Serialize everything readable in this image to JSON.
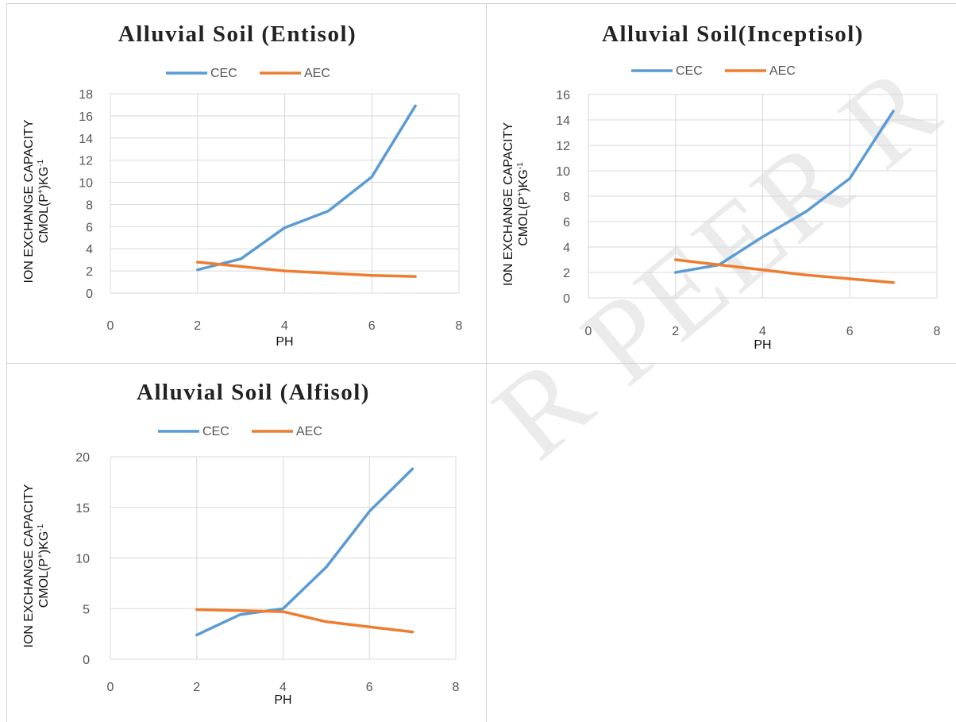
{
  "watermark": "R PEER R",
  "colors": {
    "cec": "#5B9BD5",
    "aec": "#ED7D31",
    "grid": "#d9d9d9",
    "border": "#d4d4d4"
  },
  "chart_data": [
    {
      "type": "line",
      "title": "Alluvial Soil (Entisol)",
      "xlabel": "PH",
      "ylabel_line1": "ION EXCHANGE CAPACITY",
      "ylabel_line2_prefix": "CMOL(P",
      "ylabel_sup1": "+",
      "ylabel_line2_mid": ")KG",
      "ylabel_sup2": "-1",
      "xlim": [
        0,
        8
      ],
      "xticks": [
        0,
        2,
        4,
        6,
        8
      ],
      "ylim": [
        0,
        18
      ],
      "yticks": [
        0,
        2,
        4,
        6,
        8,
        10,
        12,
        14,
        16,
        18
      ],
      "grid": true,
      "legend": "top",
      "series": [
        {
          "name": "CEC",
          "color": "#5B9BD5",
          "x": [
            2,
            3,
            4,
            5,
            6,
            7
          ],
          "y": [
            2.1,
            3.1,
            5.9,
            7.4,
            10.5,
            16.9
          ]
        },
        {
          "name": "AEC",
          "color": "#ED7D31",
          "x": [
            2,
            3,
            4,
            5,
            6,
            7
          ],
          "y": [
            2.8,
            2.4,
            2.0,
            1.8,
            1.6,
            1.5
          ]
        }
      ]
    },
    {
      "type": "line",
      "title": "Alluvial Soil(Inceptisol)",
      "xlabel": "PH",
      "ylabel_line1": "ION EXCHANGE CAPACITY",
      "ylabel_line2_prefix": "CMOL(P",
      "ylabel_sup1": "+",
      "ylabel_line2_mid": ")KG",
      "ylabel_sup2": "-1",
      "xlim": [
        0,
        8
      ],
      "xticks": [
        0,
        2,
        4,
        6,
        8
      ],
      "ylim": [
        0,
        16
      ],
      "yticks": [
        0,
        2,
        4,
        6,
        8,
        10,
        12,
        14,
        16
      ],
      "grid": true,
      "legend": "top",
      "series": [
        {
          "name": "CEC",
          "color": "#5B9BD5",
          "x": [
            2,
            3,
            4,
            5,
            6,
            7
          ],
          "y": [
            2.0,
            2.6,
            4.8,
            6.8,
            9.4,
            14.7
          ]
        },
        {
          "name": "AEC",
          "color": "#ED7D31",
          "x": [
            2,
            3,
            4,
            5,
            6,
            7
          ],
          "y": [
            3.0,
            2.6,
            2.2,
            1.8,
            1.5,
            1.2
          ]
        }
      ]
    },
    {
      "type": "line",
      "title": "Alluvial Soil (Alfisol)",
      "xlabel": "PH",
      "ylabel_line1": "ION EXCHANGE CAPACITY",
      "ylabel_line2_prefix": "CMOL(P",
      "ylabel_sup1": "+",
      "ylabel_line2_mid": ")KG",
      "ylabel_sup2": "-1",
      "xlim": [
        0,
        8
      ],
      "xticks": [
        0,
        2,
        4,
        6,
        8
      ],
      "ylim": [
        0,
        20
      ],
      "yticks": [
        0,
        5,
        10,
        15,
        20
      ],
      "grid": true,
      "legend": "top",
      "series": [
        {
          "name": "CEC",
          "color": "#5B9BD5",
          "x": [
            2,
            3,
            4,
            5,
            6,
            7
          ],
          "y": [
            2.4,
            4.4,
            5.0,
            9.1,
            14.6,
            18.8
          ]
        },
        {
          "name": "AEC",
          "color": "#ED7D31",
          "x": [
            2,
            3,
            4,
            5,
            6,
            7
          ],
          "y": [
            4.9,
            4.8,
            4.7,
            3.7,
            3.2,
            2.7
          ]
        }
      ]
    }
  ]
}
